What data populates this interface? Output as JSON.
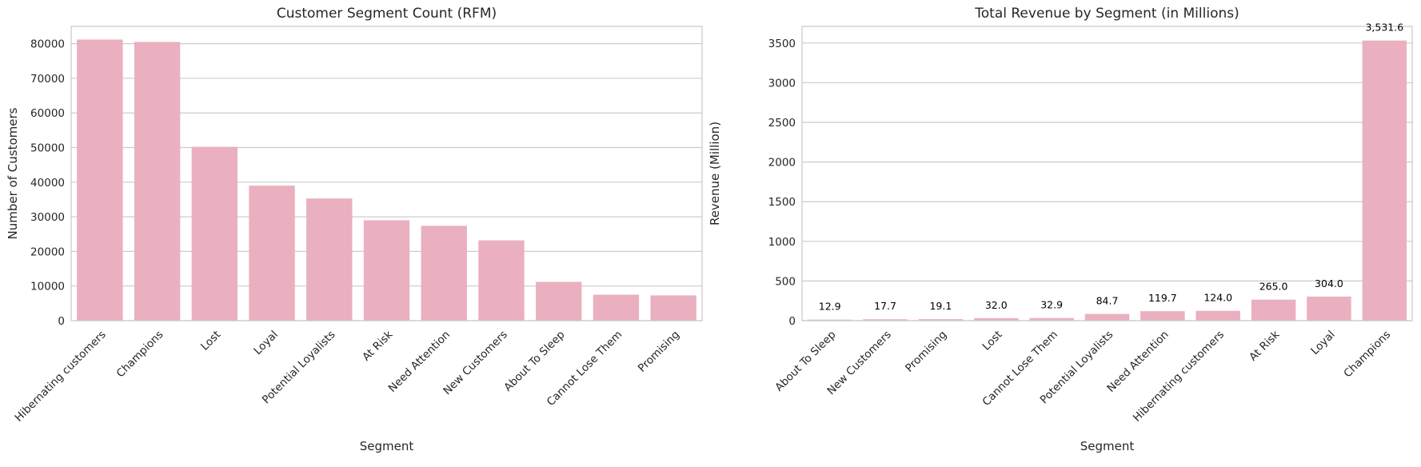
{
  "chart_data": [
    {
      "type": "bar",
      "title": "Customer Segment Count (RFM)",
      "xlabel": "Segment",
      "ylabel": "Number of Customers",
      "categories": [
        "Hibernating customers",
        "Champions",
        "Lost",
        "Loyal",
        "Potential Loyalists",
        "At Risk",
        "Need Attention",
        "New Customers",
        "About To Sleep",
        "Cannot Lose Them",
        "Promising"
      ],
      "values": [
        81200,
        80500,
        50200,
        39000,
        35300,
        29000,
        27400,
        23200,
        11200,
        7500,
        7300
      ],
      "ylim": [
        0,
        85000
      ],
      "yticks": [
        0,
        10000,
        20000,
        30000,
        40000,
        50000,
        60000,
        70000,
        80000
      ],
      "ytick_labels": [
        "0",
        "10000",
        "20000",
        "30000",
        "40000",
        "50000",
        "60000",
        "70000",
        "80000"
      ],
      "grid": "y",
      "bar_color": "#eab0c0"
    },
    {
      "type": "bar",
      "title": "Total Revenue by Segment (in Millions)",
      "xlabel": "Segment",
      "ylabel": "Revenue (Million)",
      "categories": [
        "About To Sleep",
        "New Customers",
        "Promising",
        "Lost",
        "Cannot Lose Them",
        "Potential Loyalists",
        "Need Attention",
        "Hibernating customers",
        "At Risk",
        "Loyal",
        "Champions"
      ],
      "values": [
        12.9,
        17.7,
        19.1,
        32.0,
        32.9,
        84.7,
        119.7,
        124.0,
        265.0,
        304.0,
        3531.6
      ],
      "data_labels": [
        "12.9",
        "17.7",
        "19.1",
        "32.0",
        "32.9",
        "84.7",
        "119.7",
        "124.0",
        "265.0",
        "304.0",
        "3,531.6"
      ],
      "ylim": [
        0,
        3710
      ],
      "yticks": [
        0,
        500,
        1000,
        1500,
        2000,
        2500,
        3000,
        3500
      ],
      "ytick_labels": [
        "0",
        "500",
        "1000",
        "1500",
        "2000",
        "2500",
        "3000",
        "3500"
      ],
      "grid": "y",
      "bar_color": "#eab0c0"
    }
  ]
}
